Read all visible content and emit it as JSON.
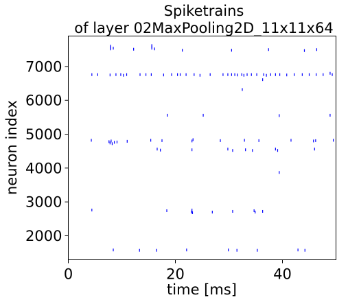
{
  "chart_data": {
    "type": "scatter",
    "title_line1": "Spiketrains",
    "title_line2": "of layer 02MaxPooling2D_11x11x64",
    "xlabel": "time [ms]",
    "ylabel": "neuron index",
    "xlim": [
      0,
      50
    ],
    "ylim": [
      1290,
      7900
    ],
    "xticks": [
      0,
      20,
      40
    ],
    "xtick_labels": [
      "0",
      "20",
      "40"
    ],
    "yticks": [
      2000,
      3000,
      4000,
      5000,
      6000,
      7000
    ],
    "ytick_labels": [
      "2000",
      "3000",
      "4000",
      "5000",
      "6000",
      "7000"
    ],
    "grid": false,
    "marker_color": "#0000ff",
    "series": [
      {
        "points": [
          [
            7.9,
            7560
          ],
          [
            7.9,
            7600
          ],
          [
            7.9,
            7520
          ],
          [
            8.4,
            7540
          ],
          [
            12.2,
            7510
          ],
          [
            15.6,
            7580
          ],
          [
            15.6,
            7620
          ],
          [
            15.6,
            7540
          ],
          [
            16.1,
            7520
          ],
          [
            21.3,
            7480
          ],
          [
            30.5,
            7480
          ],
          [
            37.4,
            7500
          ],
          [
            44.1,
            7470
          ],
          [
            46.4,
            7500
          ],
          [
            4.4,
            6760
          ],
          [
            5.5,
            6760
          ],
          [
            7.8,
            6750
          ],
          [
            8.9,
            6760
          ],
          [
            9.8,
            6760
          ],
          [
            10.3,
            6740
          ],
          [
            10.9,
            6760
          ],
          [
            13.4,
            6760
          ],
          [
            14.5,
            6760
          ],
          [
            15.5,
            6760
          ],
          [
            17.8,
            6750
          ],
          [
            19.3,
            6760
          ],
          [
            20.4,
            6760
          ],
          [
            20.9,
            6760
          ],
          [
            22.0,
            6760
          ],
          [
            23.5,
            6760
          ],
          [
            24.6,
            6740
          ],
          [
            26.5,
            6760
          ],
          [
            28.9,
            6760
          ],
          [
            29.8,
            6760
          ],
          [
            30.5,
            6760
          ],
          [
            31.1,
            6760
          ],
          [
            31.6,
            6750
          ],
          [
            32.4,
            6760
          ],
          [
            32.8,
            6740
          ],
          [
            33.4,
            6760
          ],
          [
            34.2,
            6760
          ],
          [
            35.2,
            6760
          ],
          [
            36.5,
            6760
          ],
          [
            37.0,
            6740
          ],
          [
            37.8,
            6760
          ],
          [
            38.7,
            6760
          ],
          [
            39.5,
            6760
          ],
          [
            40.8,
            6750
          ],
          [
            42.2,
            6760
          ],
          [
            43.7,
            6760
          ],
          [
            45.0,
            6760
          ],
          [
            46.3,
            6760
          ],
          [
            47.6,
            6760
          ],
          [
            48.9,
            6800
          ],
          [
            49.3,
            6760
          ],
          [
            36.3,
            6610
          ],
          [
            32.5,
            6320
          ],
          [
            18.5,
            5560
          ],
          [
            25.2,
            5560
          ],
          [
            39.4,
            5550
          ],
          [
            48.9,
            5560
          ],
          [
            4.3,
            4820
          ],
          [
            7.6,
            4780
          ],
          [
            7.8,
            4740
          ],
          [
            8.0,
            4800
          ],
          [
            8.2,
            4720
          ],
          [
            8.6,
            4760
          ],
          [
            9.1,
            4770
          ],
          [
            11.0,
            4790
          ],
          [
            15.4,
            4820
          ],
          [
            17.5,
            4810
          ],
          [
            23.1,
            4800
          ],
          [
            23.3,
            4840
          ],
          [
            28.4,
            4810
          ],
          [
            32.9,
            4820
          ],
          [
            35.6,
            4810
          ],
          [
            41.6,
            4820
          ],
          [
            45.8,
            4800
          ],
          [
            46.2,
            4810
          ],
          [
            49.5,
            4820
          ],
          [
            16.6,
            4560
          ],
          [
            17.2,
            4530
          ],
          [
            23.1,
            4540
          ],
          [
            29.8,
            4560
          ],
          [
            30.7,
            4520
          ],
          [
            33.1,
            4540
          ],
          [
            34.4,
            4520
          ],
          [
            38.7,
            4560
          ],
          [
            39.1,
            4520
          ],
          [
            46.0,
            4560
          ],
          [
            39.4,
            3870
          ],
          [
            4.4,
            2760
          ],
          [
            18.4,
            2740
          ],
          [
            23.0,
            2700
          ],
          [
            23.1,
            2760
          ],
          [
            23.2,
            2680
          ],
          [
            26.9,
            2700
          ],
          [
            30.7,
            2720
          ],
          [
            34.7,
            2740
          ],
          [
            34.9,
            2700
          ],
          [
            36.3,
            2720
          ],
          [
            8.4,
            1580
          ],
          [
            13.3,
            1570
          ],
          [
            16.5,
            1570
          ],
          [
            22.1,
            1580
          ],
          [
            29.9,
            1580
          ],
          [
            31.5,
            1570
          ],
          [
            35.3,
            1570
          ],
          [
            42.9,
            1580
          ],
          [
            44.2,
            1570
          ]
        ]
      }
    ]
  }
}
